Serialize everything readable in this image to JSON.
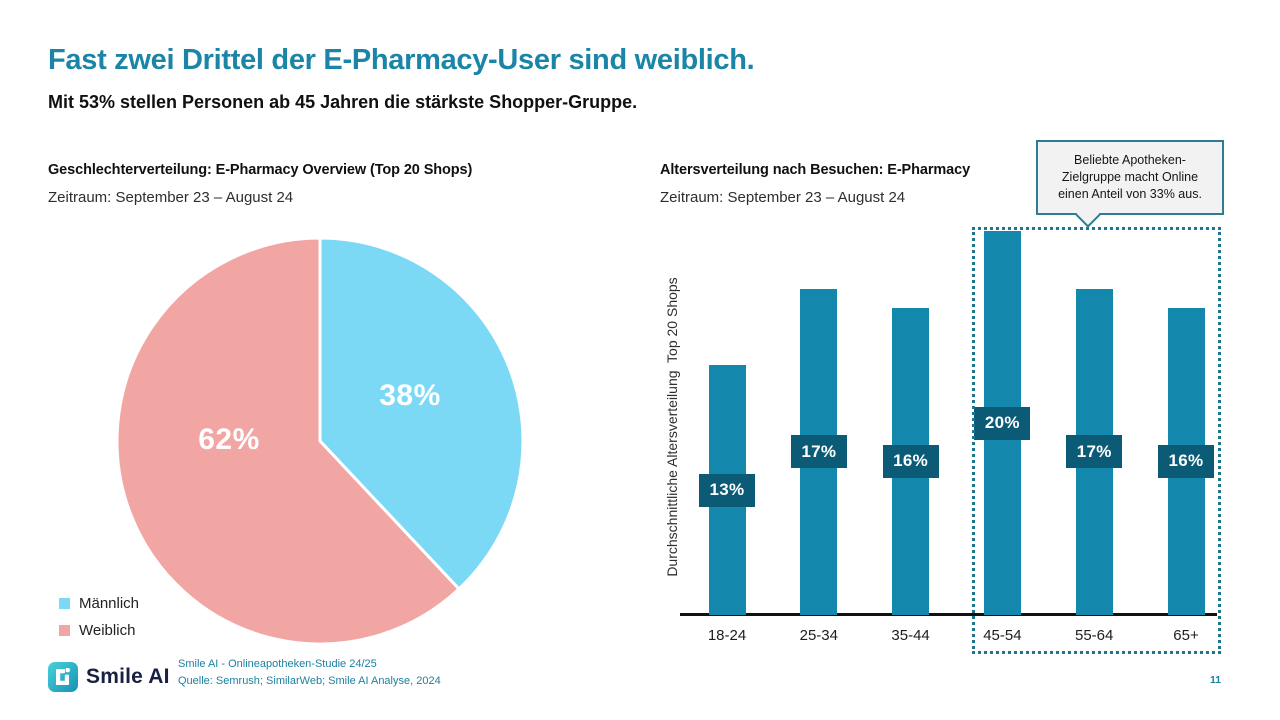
{
  "slide": {
    "title": "Fast zwei Drittel der E-Pharmacy-User sind weiblich.",
    "subtitle": "Mit 53% stellen Personen ab 45 Jahren die stärkste Shopper-Gruppe.",
    "page_number": "11"
  },
  "gender_chart": {
    "title": "Geschlechterverteilung: E-Pharmacy Overview (Top 20 Shops)",
    "period": "Zeitraum: September 23 – August 24"
  },
  "age_chart": {
    "title": "Altersverteilung nach Besuchen: E-Pharmacy",
    "period": "Zeitraum: September 23 – August 24",
    "y_axis_label": "Durchschnittliche Altersverteilung  Top 20 Shops",
    "callout": "Beliebte Apotheken-Zielgruppe macht Online einen Anteil von 33% aus."
  },
  "footer": {
    "logo_text": "Smile AI",
    "source_line1": "Smile AI - Onlineapotheken-Studie 24/25",
    "source_line2": "Quelle: Semrush; SimilarWeb; Smile AI Analyse, 2024"
  },
  "colors": {
    "accent_teal": "#1b85a8",
    "bar": "#1487ad",
    "bar_label_bg": "#0b5b77",
    "pie_male_blue": "#7cd9f5",
    "pie_female_pink": "#f1a6a4",
    "outline_teal": "#1f7490",
    "logo_navy": "#192142"
  },
  "chart_data": [
    {
      "type": "pie",
      "title": "Geschlechterverteilung: E-Pharmacy Overview (Top 20 Shops)",
      "labels": [
        "Männlich",
        "Weiblich"
      ],
      "values": [
        38,
        62
      ],
      "value_labels": [
        "38%",
        "62%"
      ],
      "colors": [
        "#7cd9f5",
        "#f1a6a4"
      ],
      "start_angle_deg": 0,
      "direction": "clockwise",
      "legend_position": "bottom-left"
    },
    {
      "type": "bar",
      "title": "Altersverteilung nach Besuchen: E-Pharmacy",
      "categories": [
        "18-24",
        "25-34",
        "35-44",
        "45-54",
        "55-64",
        "65+"
      ],
      "values": [
        13,
        17,
        16,
        20,
        17,
        16
      ],
      "value_labels": [
        "13%",
        "17%",
        "16%",
        "20%",
        "17%",
        "16%"
      ],
      "xlabel": "",
      "ylabel": "Durchschnittliche Altersverteilung  Top 20 Shops",
      "ylim": [
        0,
        21
      ],
      "grid": false,
      "highlight_group": {
        "categories": [
          "45-54",
          "55-64",
          "65+"
        ],
        "note": "Beliebte Apotheken-Zielgruppe macht Online einen Anteil von 33% aus."
      }
    }
  ]
}
